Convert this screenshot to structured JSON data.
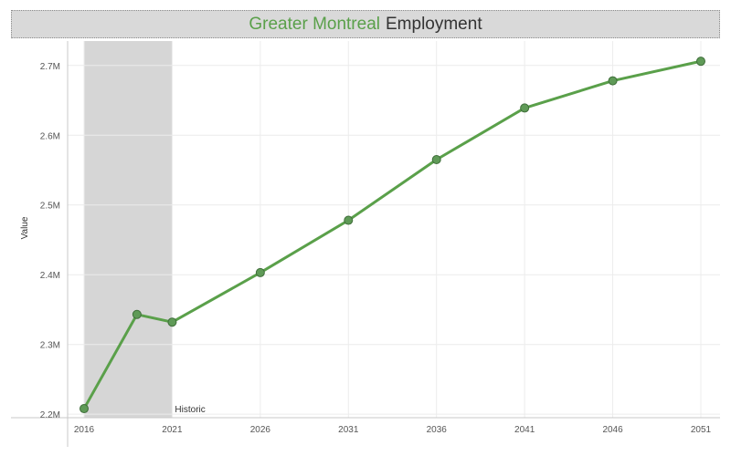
{
  "title": {
    "accent_text": "Greater Montreal",
    "rest_text": "Employment"
  },
  "colors": {
    "accent": "#5aa04a",
    "line": "#5aa04a",
    "point_fill": "#5f9a57",
    "point_stroke": "#3f6e3a",
    "band": "#d6d6d6"
  },
  "chart_data": {
    "type": "line",
    "title": "Greater Montreal Employment",
    "xlabel": "",
    "ylabel": "Value",
    "xlim": [
      2016,
      2051
    ],
    "ylim": [
      2195000,
      2735000
    ],
    "x_ticks": [
      2016,
      2021,
      2026,
      2031,
      2036,
      2041,
      2046,
      2051
    ],
    "y_ticks": [
      2200000,
      2300000,
      2400000,
      2500000,
      2600000,
      2700000
    ],
    "y_tick_labels": [
      "2.2M",
      "2.3M",
      "2.4M",
      "2.5M",
      "2.6M",
      "2.7M"
    ],
    "series": [
      {
        "name": "Employment",
        "x": [
          2016,
          2019,
          2021,
          2026,
          2031,
          2036,
          2041,
          2046,
          2051
        ],
        "values": [
          2208000,
          2343000,
          2332000,
          2403000,
          2478000,
          2565000,
          2639000,
          2678000,
          2706000
        ]
      }
    ],
    "annotations": [
      {
        "type": "shaded_band",
        "x_start": 2016,
        "x_end": 2021,
        "label": "Historic"
      }
    ],
    "grid": true
  }
}
